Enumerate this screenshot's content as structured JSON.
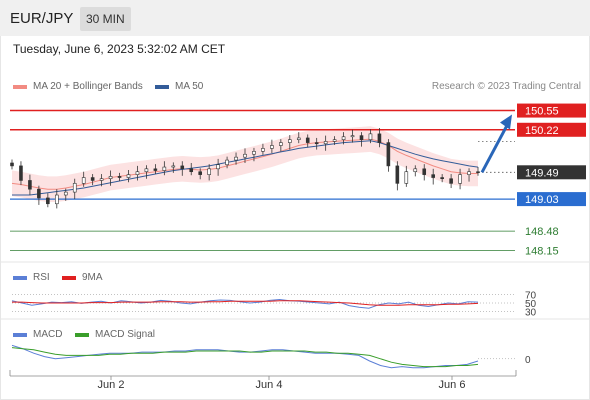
{
  "header": {
    "symbol": "EUR/JPY",
    "timeframe": "30 MIN"
  },
  "subheader": {
    "datetime": "Tuesday, June 6, 2023 5:32:02 AM CET"
  },
  "legend": {
    "ma_label": "MA 20 + Bollinger Bands",
    "ma_color": "#f28b82",
    "ma50_label": "MA 50",
    "ma50_color": "#335c99",
    "credit": "Research © 2023 Trading Central"
  },
  "colors": {
    "resistance": "#e02020",
    "support": "#2a6dd0",
    "target": "#2e7d32",
    "arrow": "#2a66b8",
    "candle_up": "#ffffff",
    "candle_down": "#333333",
    "bollinger": "#fbd5d5"
  },
  "chart_data": [
    {
      "type": "line",
      "name": "EUR/JPY candlesticks",
      "ylim": [
        147.95,
        150.8
      ],
      "x_ticks": [
        "Jun 2",
        "Jun 4",
        "Jun 6"
      ],
      "last_price": 149.49,
      "levels": [
        {
          "value": 150.55,
          "label": "150.55",
          "kind": "resistance"
        },
        {
          "value": 150.22,
          "label": "150.22",
          "kind": "resistance"
        },
        {
          "value": 149.49,
          "label": "149.49",
          "kind": "current"
        },
        {
          "value": 149.03,
          "label": "149.03",
          "kind": "support"
        },
        {
          "value": 148.48,
          "label": "148.48",
          "kind": "target"
        },
        {
          "value": 148.15,
          "label": "148.15",
          "kind": "target"
        }
      ],
      "projection": {
        "from": 149.49,
        "to": 150.55
      },
      "close": [
        149.6,
        149.35,
        149.2,
        149.05,
        148.95,
        149.1,
        149.15,
        149.3,
        149.4,
        149.35,
        149.38,
        149.42,
        149.4,
        149.45,
        149.5,
        149.55,
        149.52,
        149.58,
        149.6,
        149.55,
        149.5,
        149.45,
        149.55,
        149.62,
        149.7,
        149.75,
        149.8,
        149.85,
        149.9,
        149.95,
        150.0,
        150.05,
        150.08,
        150.0,
        149.98,
        150.02,
        150.05,
        150.1,
        150.12,
        150.05,
        150.15,
        150.0,
        149.6,
        149.3,
        149.5,
        149.55,
        149.45,
        149.4,
        149.38,
        149.3,
        149.45,
        149.5,
        149.49
      ],
      "ma20": [
        149.3,
        149.28,
        149.25,
        149.22,
        149.2,
        149.2,
        149.22,
        149.25,
        149.28,
        149.32,
        149.36,
        149.4,
        149.42,
        149.44,
        149.46,
        149.48,
        149.5,
        149.52,
        149.54,
        149.55,
        149.54,
        149.53,
        149.54,
        149.56,
        149.6,
        149.64,
        149.68,
        149.72,
        149.76,
        149.8,
        149.85,
        149.9,
        149.95,
        149.98,
        150.0,
        150.01,
        150.02,
        150.03,
        150.04,
        150.05,
        150.06,
        150.02,
        149.95,
        149.85,
        149.78,
        149.72,
        149.66,
        149.6,
        149.55,
        149.5,
        149.48,
        149.47,
        149.47
      ],
      "ma50": [
        149.1,
        149.1,
        149.1,
        149.12,
        149.14,
        149.16,
        149.18,
        149.2,
        149.22,
        149.25,
        149.28,
        149.31,
        149.34,
        149.37,
        149.4,
        149.43,
        149.46,
        149.49,
        149.52,
        149.54,
        149.56,
        149.58,
        149.6,
        149.63,
        149.66,
        149.69,
        149.72,
        149.75,
        149.78,
        149.81,
        149.84,
        149.87,
        149.9,
        149.92,
        149.94,
        149.96,
        149.98,
        150.0,
        150.01,
        150.02,
        150.03,
        150.0,
        149.95,
        149.9,
        149.85,
        149.8,
        149.76,
        149.72,
        149.69,
        149.66,
        149.63,
        149.6,
        149.58
      ]
    },
    {
      "type": "line",
      "name": "RSI",
      "series": [
        {
          "name": "RSI",
          "color": "#5b7fd6",
          "values": [
            55,
            50,
            45,
            48,
            52,
            51,
            53,
            49,
            52,
            54,
            50,
            55,
            53,
            50,
            52,
            56,
            54,
            50,
            48,
            52,
            55,
            57,
            56,
            53,
            50,
            52,
            56,
            58,
            55,
            54,
            52,
            50,
            48,
            52,
            44,
            40,
            38,
            46,
            50,
            48,
            52,
            45,
            42,
            46,
            50,
            48,
            53,
            52
          ]
        },
        {
          "name": "9MA",
          "color": "#e02020",
          "values": [
            52,
            52,
            51,
            50,
            50,
            50,
            50,
            50,
            51,
            51,
            51,
            52,
            52,
            52,
            52,
            53,
            53,
            53,
            52,
            52,
            53,
            53,
            54,
            54,
            54,
            54,
            54,
            55,
            55,
            55,
            54,
            53,
            52,
            51,
            50,
            48,
            46,
            45,
            45,
            45,
            46,
            46,
            46,
            46,
            47,
            47,
            48,
            49
          ]
        }
      ],
      "y_ticks": [
        70,
        50,
        30
      ]
    },
    {
      "type": "line",
      "name": "MACD",
      "series": [
        {
          "name": "MACD",
          "color": "#5b7fd6",
          "values": [
            0.12,
            0.09,
            0.05,
            0.02,
            0.0,
            0.01,
            0.02,
            0.03,
            0.04,
            0.05,
            0.05,
            0.05,
            0.06,
            0.06,
            0.06,
            0.07,
            0.07,
            0.08,
            0.08,
            0.08,
            0.07,
            0.06,
            0.06,
            0.07,
            0.08,
            0.08,
            0.07,
            0.06,
            0.05,
            0.05,
            0.05,
            0.04,
            0.03,
            -0.02,
            -0.06,
            -0.08,
            -0.07,
            -0.08,
            -0.08,
            -0.07,
            -0.06,
            -0.06,
            -0.05,
            -0.02
          ]
        },
        {
          "name": "MACD Signal",
          "color": "#3a9e2a",
          "values": [
            0.1,
            0.09,
            0.08,
            0.06,
            0.04,
            0.03,
            0.03,
            0.03,
            0.03,
            0.04,
            0.04,
            0.05,
            0.05,
            0.05,
            0.06,
            0.06,
            0.06,
            0.07,
            0.07,
            0.07,
            0.07,
            0.07,
            0.06,
            0.06,
            0.07,
            0.07,
            0.07,
            0.07,
            0.06,
            0.06,
            0.05,
            0.05,
            0.04,
            0.03,
            0.0,
            -0.03,
            -0.05,
            -0.06,
            -0.07,
            -0.07,
            -0.07,
            -0.06,
            -0.06,
            -0.05
          ]
        }
      ],
      "y_ticks": [
        0
      ]
    }
  ]
}
